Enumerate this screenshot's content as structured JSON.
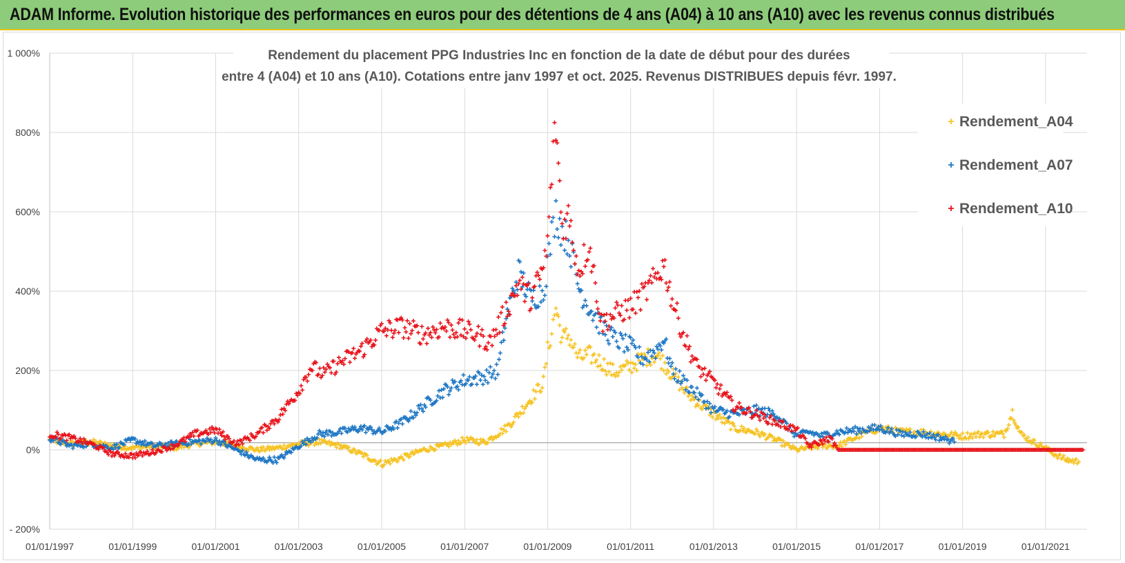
{
  "banner": {
    "title": "ADAM Informe. Evolution historique des performances en euros pour des détentions de 4 ans (A04) à 10 ans (A10) avec les revenus connus distribués"
  },
  "colors": {
    "banner_bg": "#8dcc7a",
    "banner_border": "#e8c200",
    "A04": "#f6c324",
    "A07": "#1f77c4",
    "A10": "#e8141b",
    "grid": "#d9d9d9",
    "axis_text": "#404040"
  },
  "chart_data": {
    "type": "scatter",
    "title_line1": "Rendement du placement PPG Industries Inc en fonction de la date de début pour des durées",
    "title_line2": "entre 4 (A04) et 10 ans (A10). Cotations entre janv 1997 et oct. 2025.  Revenus DISTRIBUES depuis févr. 1997.",
    "xlabel": "",
    "ylabel": "",
    "x_range": [
      1997.0,
      2021.9
    ],
    "ylim": [
      -200,
      1000
    ],
    "y_ticks": [
      -200,
      0,
      200,
      400,
      600,
      800,
      1000
    ],
    "y_tick_labels": [
      "- 200%",
      "0%",
      "200%",
      "400%",
      "600%",
      "800%",
      "1 000%"
    ],
    "x_ticks": [
      1997,
      1999,
      2001,
      2003,
      2005,
      2007,
      2009,
      2011,
      2013,
      2015,
      2017,
      2019,
      2021
    ],
    "x_tick_labels": [
      "01/01/1997",
      "01/01/1999",
      "01/01/2001",
      "01/01/2003",
      "01/01/2005",
      "01/01/2007",
      "01/01/2009",
      "01/01/2011",
      "01/01/2013",
      "01/01/2015",
      "01/01/2017",
      "01/01/2019",
      "01/01/2021"
    ],
    "grid": true,
    "marker": "+",
    "legend_position": "top-right",
    "series": [
      {
        "name": "Rendement_A04",
        "color_key": "A04",
        "x": [
          1997.0,
          1997.5,
          1998.0,
          1998.5,
          1999.0,
          1999.5,
          2000.0,
          2000.5,
          2001.0,
          2001.5,
          2002.0,
          2002.5,
          2003.0,
          2003.5,
          2004.0,
          2004.5,
          2005.0,
          2005.5,
          2006.0,
          2006.5,
          2007.0,
          2007.5,
          2008.0,
          2008.3,
          2008.6,
          2008.9,
          2009.0,
          2009.1,
          2009.2,
          2009.35,
          2009.5,
          2009.75,
          2010.0,
          2010.3,
          2010.6,
          2011.0,
          2011.3,
          2011.6,
          2011.8,
          2012.0,
          2012.3,
          2012.6,
          2013.0,
          2013.5,
          2014.0,
          2014.5,
          2015.0,
          2015.3,
          2015.6,
          2016.0,
          2016.3,
          2016.6,
          2017.0,
          2017.5,
          2018.0,
          2018.5,
          2019.0,
          2019.5,
          2020.0,
          2020.2,
          2020.4,
          2020.7,
          2021.0,
          2021.2,
          2021.5,
          2021.8
        ],
        "y": [
          25,
          15,
          20,
          10,
          5,
          10,
          5,
          15,
          20,
          10,
          0,
          5,
          15,
          20,
          10,
          -10,
          -35,
          -20,
          0,
          10,
          25,
          20,
          55,
          90,
          130,
          170,
          250,
          300,
          360,
          280,
          290,
          230,
          240,
          220,
          195,
          210,
          230,
          240,
          220,
          190,
          150,
          120,
          90,
          55,
          45,
          25,
          0,
          5,
          10,
          10,
          25,
          40,
          55,
          45,
          45,
          40,
          35,
          40,
          40,
          95,
          40,
          20,
          5,
          -10,
          -25,
          -30
        ]
      },
      {
        "name": "Rendement_A07",
        "color_key": "A07",
        "x": [
          1997.0,
          1997.5,
          1998.0,
          1998.5,
          1999.0,
          1999.5,
          2000.0,
          2000.5,
          2001.0,
          2001.5,
          2002.0,
          2002.5,
          2003.0,
          2003.5,
          2004.0,
          2004.5,
          2005.0,
          2005.5,
          2006.0,
          2006.5,
          2007.0,
          2007.5,
          2007.8,
          2008.0,
          2008.3,
          2008.6,
          2008.9,
          2009.0,
          2009.1,
          2009.2,
          2009.35,
          2009.5,
          2009.75,
          2010.0,
          2010.3,
          2010.6,
          2011.0,
          2011.3,
          2011.6,
          2011.8,
          2012.0,
          2012.3,
          2012.6,
          2013.0,
          2013.5,
          2014.0,
          2014.5,
          2015.0,
          2015.3,
          2015.6,
          2016.0,
          2016.5,
          2017.0,
          2017.5,
          2018.0,
          2018.5,
          2018.8
        ],
        "y": [
          30,
          10,
          15,
          5,
          25,
          10,
          15,
          20,
          25,
          0,
          -25,
          -25,
          10,
          40,
          45,
          55,
          45,
          70,
          110,
          150,
          175,
          185,
          200,
          330,
          450,
          380,
          400,
          470,
          540,
          600,
          550,
          530,
          410,
          360,
          310,
          280,
          260,
          230,
          250,
          280,
          200,
          170,
          140,
          100,
          90,
          100,
          90,
          35,
          45,
          35,
          45,
          50,
          55,
          40,
          40,
          30,
          20
        ]
      },
      {
        "name": "Rendement_A10",
        "color_key": "A10",
        "x": [
          1997.0,
          1997.5,
          1998.0,
          1998.5,
          1999.0,
          1999.5,
          2000.0,
          2000.5,
          2001.0,
          2001.5,
          2002.0,
          2002.5,
          2003.0,
          2003.3,
          2003.6,
          2004.0,
          2004.5,
          2005.0,
          2005.5,
          2006.0,
          2006.5,
          2007.0,
          2007.3,
          2007.6,
          2008.0,
          2008.3,
          2008.6,
          2008.9,
          2009.0,
          2009.1,
          2009.2,
          2009.35,
          2009.5,
          2009.75,
          2010.0,
          2010.3,
          2010.6,
          2011.0,
          2011.3,
          2011.6,
          2011.8,
          2012.0,
          2012.3,
          2012.6,
          2013.0,
          2013.5,
          2014.0,
          2014.5,
          2015.0,
          2015.3,
          2015.6,
          2015.8,
          2016.0,
          2017.0,
          2018.0,
          2019.0,
          2020.0,
          2021.0,
          2021.9
        ],
        "y": [
          40,
          30,
          15,
          -10,
          -15,
          -5,
          10,
          40,
          50,
          15,
          40,
          80,
          150,
          210,
          190,
          220,
          250,
          300,
          310,
          290,
          310,
          300,
          290,
          270,
          350,
          420,
          380,
          460,
          520,
          700,
          820,
          560,
          590,
          450,
          520,
          320,
          340,
          360,
          390,
          430,
          470,
          380,
          280,
          210,
          170,
          110,
          90,
          70,
          50,
          10,
          20,
          30,
          0,
          0,
          0,
          0,
          0,
          0,
          0
        ]
      }
    ]
  }
}
